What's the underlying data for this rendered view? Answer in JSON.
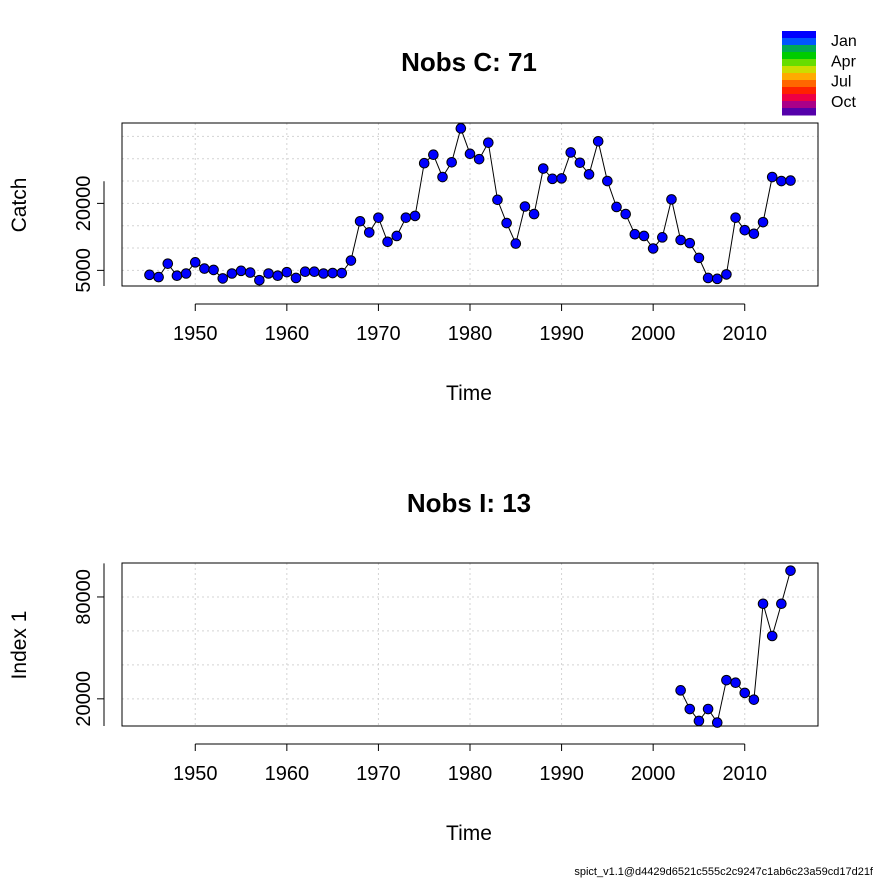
{
  "footer": "spict_v1.1@d4429d6521c555c2c9247c1ab6c23a59cd17d21f",
  "legend": {
    "labels": [
      "Jan",
      "Apr",
      "Jul",
      "Oct"
    ],
    "colors": [
      "#0000FF",
      "#0055FF",
      "#00AA55",
      "#00CC00",
      "#66DD00",
      "#CCDD00",
      "#FFAA00",
      "#FF6600",
      "#FF2200",
      "#EE0044",
      "#AA0088",
      "#5500AA"
    ]
  },
  "chart_data": [
    {
      "type": "line",
      "title": "Nobs C: 71",
      "xlabel": "Time",
      "ylabel": "Catch",
      "xlim": [
        1942,
        2018
      ],
      "ylim": [
        1500,
        38000
      ],
      "xticks": [
        1950,
        1960,
        1970,
        1980,
        1990,
        2000,
        2010
      ],
      "yticks": [
        5000,
        20000
      ],
      "grid": true,
      "marker_color": "#0000FF",
      "x": [
        1945,
        1946,
        1947,
        1948,
        1949,
        1950,
        1951,
        1952,
        1953,
        1954,
        1955,
        1956,
        1957,
        1958,
        1959,
        1960,
        1961,
        1962,
        1963,
        1964,
        1965,
        1966,
        1967,
        1968,
        1969,
        1970,
        1971,
        1972,
        1973,
        1974,
        1975,
        1976,
        1977,
        1978,
        1979,
        1980,
        1981,
        1982,
        1983,
        1984,
        1985,
        1986,
        1987,
        1988,
        1989,
        1990,
        1991,
        1992,
        1993,
        1994,
        1995,
        1996,
        1997,
        1998,
        1999,
        2000,
        2001,
        2002,
        2003,
        2004,
        2005,
        2006,
        2007,
        2008,
        2009,
        2010,
        2011,
        2012,
        2013,
        2014,
        2015
      ],
      "y": [
        4000,
        3500,
        6500,
        3800,
        4300,
        6800,
        5400,
        5100,
        3200,
        4300,
        4900,
        4500,
        2800,
        4300,
        3800,
        4600,
        3300,
        4700,
        4700,
        4300,
        4400,
        4400,
        7200,
        16000,
        13500,
        16800,
        11400,
        12700,
        16800,
        17200,
        29000,
        30900,
        25900,
        29200,
        36800,
        31100,
        29900,
        33600,
        20800,
        15600,
        11000,
        19300,
        17600,
        27800,
        25500,
        25600,
        31400,
        29100,
        26500,
        33900,
        25000,
        19200,
        17600,
        13100,
        12700,
        9900,
        12400,
        20900,
        11800,
        11100,
        7800,
        3300,
        3100,
        4100,
        16800,
        14000,
        13200,
        15800,
        25900,
        25000,
        25100
      ]
    },
    {
      "type": "line",
      "title": "Nobs I: 13",
      "xlabel": "Time",
      "ylabel": "Index 1",
      "xlim": [
        1942,
        2018
      ],
      "ylim": [
        4000,
        100000
      ],
      "xticks": [
        1950,
        1960,
        1970,
        1980,
        1990,
        2000,
        2010
      ],
      "yticks": [
        20000,
        80000
      ],
      "grid": true,
      "marker_color": "#0000FF",
      "x": [
        2003,
        2004,
        2005,
        2006,
        2007,
        2008,
        2009,
        2010,
        2011,
        2012,
        2013,
        2014,
        2015
      ],
      "y": [
        25000,
        14000,
        7000,
        14000,
        6000,
        31000,
        29500,
        23500,
        19500,
        76000,
        57000,
        76000,
        95500
      ]
    }
  ]
}
